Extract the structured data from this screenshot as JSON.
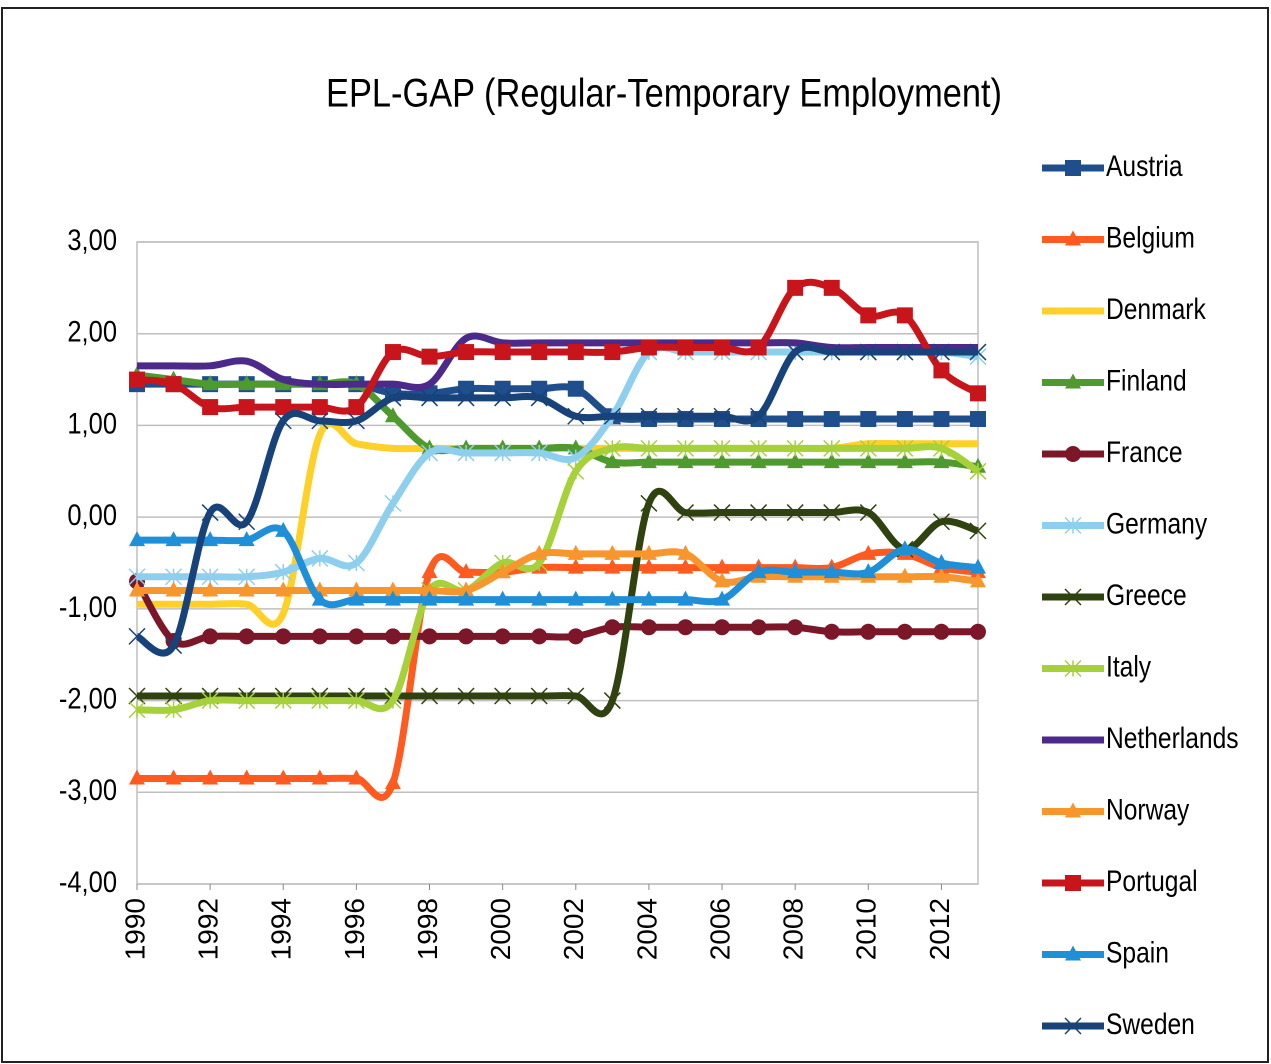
{
  "chart_data": {
    "type": "line",
    "title": "EPL-GAP (Regular-Temporary Employment)",
    "x": [
      1990,
      1991,
      1992,
      1993,
      1994,
      1995,
      1996,
      1997,
      1998,
      1999,
      2000,
      2001,
      2002,
      2003,
      2004,
      2005,
      2006,
      2007,
      2008,
      2009,
      2010,
      2011,
      2012,
      2013
    ],
    "xlim": [
      1990,
      2013
    ],
    "xticks": [
      1990,
      1992,
      1994,
      1996,
      1998,
      2000,
      2002,
      2004,
      2006,
      2008,
      2010,
      2012
    ],
    "ylim": [
      -4,
      3
    ],
    "yticks": [
      {
        "value": 3,
        "label": "3,00"
      },
      {
        "value": 2,
        "label": "2,00"
      },
      {
        "value": 1,
        "label": "1,00"
      },
      {
        "value": 0,
        "label": "0,00"
      },
      {
        "value": -1,
        "label": "-1,00"
      },
      {
        "value": -2,
        "label": "-2,00"
      },
      {
        "value": -3,
        "label": "-3,00"
      },
      {
        "value": -4,
        "label": "-4,00"
      }
    ],
    "grid": true,
    "legend": "right",
    "series": [
      {
        "name": "Austria",
        "color": "#1f4e8c",
        "marker": "square",
        "values": [
          1.45,
          1.45,
          1.45,
          1.45,
          1.45,
          1.45,
          1.45,
          1.35,
          1.35,
          1.4,
          1.4,
          1.4,
          1.4,
          1.1,
          1.07,
          1.07,
          1.07,
          1.07,
          1.07,
          1.07,
          1.07,
          1.07,
          1.07,
          1.07
        ]
      },
      {
        "name": "Belgium",
        "color": "#ff5a1f",
        "marker": "triangle",
        "values": [
          -2.85,
          -2.85,
          -2.85,
          -2.85,
          -2.85,
          -2.85,
          -2.85,
          -2.9,
          -0.6,
          -0.6,
          -0.6,
          -0.55,
          -0.55,
          -0.55,
          -0.55,
          -0.55,
          -0.55,
          -0.55,
          -0.55,
          -0.55,
          -0.4,
          -0.4,
          -0.55,
          -0.6
        ]
      },
      {
        "name": "Denmark",
        "color": "#ffd027",
        "marker": "line",
        "values": [
          -0.95,
          -0.95,
          -0.95,
          -0.95,
          -1.05,
          0.9,
          0.8,
          0.75,
          0.75,
          0.75,
          0.75,
          0.75,
          0.75,
          0.75,
          0.75,
          0.75,
          0.75,
          0.75,
          0.75,
          0.75,
          0.8,
          0.8,
          0.8,
          0.8
        ]
      },
      {
        "name": "Finland",
        "color": "#4e9a2e",
        "marker": "triangle",
        "values": [
          1.55,
          1.5,
          1.45,
          1.45,
          1.45,
          1.45,
          1.45,
          1.1,
          0.75,
          0.75,
          0.75,
          0.75,
          0.75,
          0.6,
          0.6,
          0.6,
          0.6,
          0.6,
          0.6,
          0.6,
          0.6,
          0.6,
          0.6,
          0.55
        ]
      },
      {
        "name": "France",
        "color": "#7b1728",
        "marker": "circle",
        "values": [
          -0.7,
          -1.35,
          -1.3,
          -1.3,
          -1.3,
          -1.3,
          -1.3,
          -1.3,
          -1.3,
          -1.3,
          -1.3,
          -1.3,
          -1.3,
          -1.2,
          -1.2,
          -1.2,
          -1.2,
          -1.2,
          -1.2,
          -1.25,
          -1.25,
          -1.25,
          -1.25,
          -1.25
        ]
      },
      {
        "name": "Germany",
        "color": "#8fcfee",
        "marker": "star",
        "values": [
          -0.65,
          -0.65,
          -0.65,
          -0.65,
          -0.6,
          -0.45,
          -0.5,
          0.15,
          0.7,
          0.7,
          0.7,
          0.7,
          0.65,
          1.1,
          1.8,
          1.8,
          1.8,
          1.8,
          1.8,
          1.8,
          1.8,
          1.8,
          1.8,
          1.75
        ]
      },
      {
        "name": "Greece",
        "color": "#2f4210",
        "marker": "cross",
        "values": [
          -1.95,
          -1.95,
          -1.95,
          -1.95,
          -1.95,
          -1.95,
          -1.95,
          -1.95,
          -1.95,
          -1.95,
          -1.95,
          -1.95,
          -1.95,
          -2.0,
          0.15,
          0.05,
          0.05,
          0.05,
          0.05,
          0.05,
          0.05,
          -0.35,
          -0.05,
          -0.15
        ]
      },
      {
        "name": "Italy",
        "color": "#a6d13a",
        "marker": "star",
        "values": [
          -2.1,
          -2.1,
          -2.0,
          -2.0,
          -2.0,
          -2.0,
          -2.0,
          -2.0,
          -0.8,
          -0.8,
          -0.5,
          -0.5,
          0.5,
          0.75,
          0.75,
          0.75,
          0.75,
          0.75,
          0.75,
          0.75,
          0.75,
          0.75,
          0.75,
          0.5
        ]
      },
      {
        "name": "Netherlands",
        "color": "#4b2a8a",
        "marker": "line",
        "values": [
          1.65,
          1.65,
          1.65,
          1.7,
          1.5,
          1.45,
          1.45,
          1.45,
          1.45,
          1.95,
          1.9,
          1.9,
          1.9,
          1.9,
          1.9,
          1.9,
          1.9,
          1.9,
          1.9,
          1.85,
          1.85,
          1.85,
          1.85,
          1.85
        ]
      },
      {
        "name": "Norway",
        "color": "#f7962d",
        "marker": "triangle",
        "values": [
          -0.8,
          -0.8,
          -0.8,
          -0.8,
          -0.8,
          -0.8,
          -0.8,
          -0.8,
          -0.8,
          -0.8,
          -0.6,
          -0.4,
          -0.4,
          -0.4,
          -0.4,
          -0.4,
          -0.7,
          -0.65,
          -0.65,
          -0.65,
          -0.65,
          -0.65,
          -0.65,
          -0.7
        ]
      },
      {
        "name": "Portugal",
        "color": "#c8151c",
        "marker": "square",
        "values": [
          1.5,
          1.45,
          1.2,
          1.2,
          1.2,
          1.2,
          1.2,
          1.8,
          1.75,
          1.8,
          1.8,
          1.8,
          1.8,
          1.8,
          1.85,
          1.85,
          1.85,
          1.85,
          2.5,
          2.5,
          2.2,
          2.2,
          1.6,
          1.35
        ]
      },
      {
        "name": "Spain",
        "color": "#1f8fd8",
        "marker": "triangle",
        "values": [
          -0.25,
          -0.25,
          -0.25,
          -0.25,
          -0.15,
          -0.9,
          -0.9,
          -0.9,
          -0.9,
          -0.9,
          -0.9,
          -0.9,
          -0.9,
          -0.9,
          -0.9,
          -0.9,
          -0.9,
          -0.6,
          -0.6,
          -0.6,
          -0.6,
          -0.35,
          -0.5,
          -0.55
        ]
      },
      {
        "name": "Sweden",
        "color": "#17427a",
        "marker": "cross",
        "values": [
          -1.3,
          -1.4,
          0.05,
          -0.05,
          1.05,
          1.05,
          1.05,
          1.3,
          1.3,
          1.3,
          1.3,
          1.3,
          1.1,
          1.1,
          1.1,
          1.1,
          1.1,
          1.1,
          1.8,
          1.8,
          1.8,
          1.8,
          1.8,
          1.8
        ]
      }
    ]
  }
}
